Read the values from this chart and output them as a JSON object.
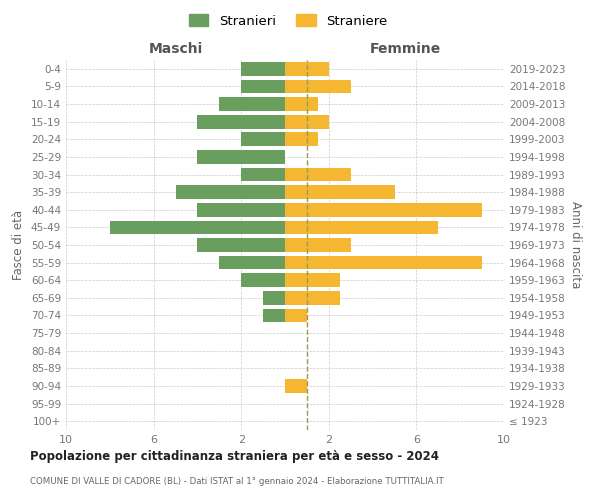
{
  "age_groups": [
    "100+",
    "95-99",
    "90-94",
    "85-89",
    "80-84",
    "75-79",
    "70-74",
    "65-69",
    "60-64",
    "55-59",
    "50-54",
    "45-49",
    "40-44",
    "35-39",
    "30-34",
    "25-29",
    "20-24",
    "15-19",
    "10-14",
    "5-9",
    "0-4"
  ],
  "birth_years": [
    "≤ 1923",
    "1924-1928",
    "1929-1933",
    "1934-1938",
    "1939-1943",
    "1944-1948",
    "1949-1953",
    "1954-1958",
    "1959-1963",
    "1964-1968",
    "1969-1973",
    "1974-1978",
    "1979-1983",
    "1984-1988",
    "1989-1993",
    "1994-1998",
    "1999-2003",
    "2004-2008",
    "2009-2013",
    "2014-2018",
    "2019-2023"
  ],
  "maschi": [
    0,
    0,
    0,
    0,
    0,
    0,
    1,
    1,
    2,
    3,
    4,
    8,
    4,
    5,
    2,
    4,
    2,
    4,
    3,
    2,
    2
  ],
  "femmine": [
    0,
    0,
    1,
    0,
    0,
    0,
    1,
    2.5,
    2.5,
    9,
    3,
    7,
    9,
    5,
    3,
    0,
    1.5,
    2,
    1.5,
    3,
    2
  ],
  "color_maschi": "#6a9e5e",
  "color_femmine": "#f5b731",
  "color_dashed": "#9a9a50",
  "title": "Popolazione per cittadinanza straniera per età e sesso - 2024",
  "subtitle": "COMUNE DI VALLE DI CADORE (BL) - Dati ISTAT al 1° gennaio 2024 - Elaborazione TUTTITALIA.IT",
  "ylabel_left": "Fasce di età",
  "ylabel_right": "Anni di nascita",
  "header_maschi": "Maschi",
  "header_femmine": "Femmine",
  "legend_maschi": "Stranieri",
  "legend_femmine": "Straniere",
  "xlim": 10,
  "background_color": "#ffffff",
  "grid_color": "#cccccc"
}
